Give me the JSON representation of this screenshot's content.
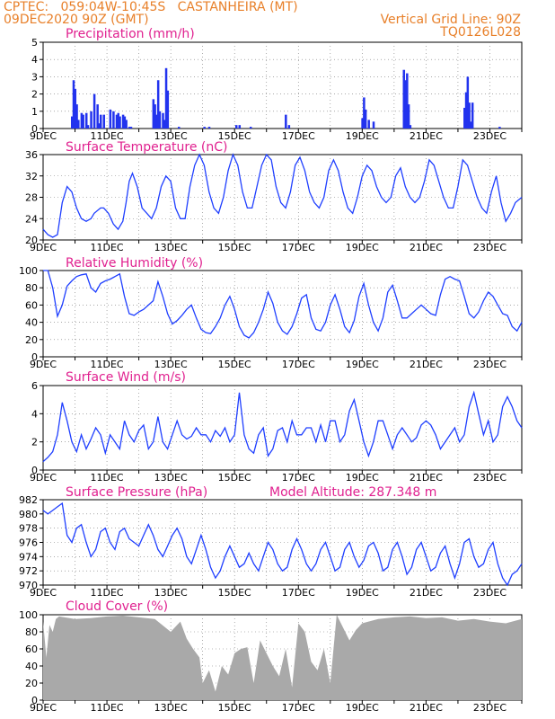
{
  "header": {
    "line1_left": "CPTEC:   059:04W-10:45S   CASTANHEIRA (MT)",
    "line2_left": "09DEC2020 90Z (GMT)",
    "line1_right": "Vertical Grid Line: 90Z",
    "line2_right": "TQ0126L028"
  },
  "x_tick_labels": [
    "9DEC",
    "11DEC",
    "13DEC",
    "15DEC",
    "17DEC",
    "19DEC",
    "21DEC",
    "23DEC"
  ],
  "colors": {
    "series": "#1f3fff",
    "bars": "#2233ee",
    "cloud": "#a9a9a9",
    "title": "#e0208f",
    "header": "#e8802a"
  },
  "chart_data": [
    {
      "type": "bar",
      "title": "Precipitation (mm/h)",
      "ylim": [
        0,
        5
      ],
      "yticks": [
        "0",
        "1",
        "2",
        "3",
        "4",
        "5"
      ],
      "x_unit": "day offset from 9DEC",
      "xlim": [
        0,
        15
      ],
      "grid": true,
      "x": [
        0.9,
        0.95,
        1.0,
        1.05,
        1.1,
        1.2,
        1.25,
        1.35,
        1.4,
        1.5,
        1.6,
        1.7,
        1.75,
        1.8,
        1.9,
        2.1,
        2.2,
        2.3,
        2.35,
        2.4,
        2.5,
        2.55,
        2.6,
        2.7,
        2.75,
        3.45,
        3.5,
        3.55,
        3.6,
        3.65,
        3.75,
        3.8,
        3.85,
        3.9,
        4.25,
        5.05,
        5.2,
        6.05,
        6.15,
        6.5,
        7.6,
        7.7,
        10.0,
        10.05,
        10.1,
        10.2,
        10.35,
        11.3,
        11.35,
        11.4,
        11.45,
        11.5,
        13.2,
        13.25,
        13.3,
        13.35,
        13.4,
        13.45,
        14.3
      ],
      "values": [
        0.7,
        2.8,
        2.3,
        1.4,
        0.5,
        0.9,
        0.8,
        0.9,
        0.2,
        1.0,
        2.0,
        1.4,
        0.3,
        0.8,
        0.8,
        1.1,
        1.0,
        0.8,
        0.9,
        0.7,
        0.8,
        0.7,
        0.5,
        0.1,
        0.1,
        1.7,
        1.4,
        0.8,
        2.8,
        1.0,
        0.9,
        0.5,
        3.5,
        2.2,
        0.1,
        0.1,
        0.1,
        0.2,
        0.2,
        0.1,
        0.8,
        0.2,
        0.6,
        1.8,
        1.1,
        0.5,
        0.4,
        3.4,
        2.8,
        3.2,
        1.4,
        0.2,
        1.2,
        2.1,
        3.0,
        1.5,
        0.4,
        1.5,
        0.1
      ]
    },
    {
      "type": "line",
      "title": "Surface Temperature (nC)",
      "ylim": [
        20,
        36
      ],
      "yticks": [
        "20",
        "24",
        "28",
        "32",
        "36"
      ],
      "xlim": [
        0,
        15
      ],
      "grid": true,
      "x": [
        0,
        0.15,
        0.3,
        0.45,
        0.6,
        0.75,
        0.9,
        1.05,
        1.2,
        1.35,
        1.5,
        1.6,
        1.8,
        1.9,
        2.05,
        2.2,
        2.35,
        2.5,
        2.6,
        2.7,
        2.8,
        2.95,
        3.1,
        3.25,
        3.4,
        3.55,
        3.7,
        3.85,
        4.0,
        4.15,
        4.3,
        4.45,
        4.6,
        4.75,
        4.9,
        5.05,
        5.2,
        5.35,
        5.5,
        5.65,
        5.8,
        5.95,
        6.1,
        6.25,
        6.4,
        6.55,
        6.7,
        6.85,
        7.0,
        7.15,
        7.3,
        7.45,
        7.6,
        7.75,
        7.9,
        8.05,
        8.2,
        8.35,
        8.5,
        8.65,
        8.8,
        8.95,
        9.1,
        9.25,
        9.4,
        9.55,
        9.7,
        9.85,
        10.0,
        10.15,
        10.3,
        10.45,
        10.6,
        10.75,
        10.9,
        11.05,
        11.2,
        11.35,
        11.5,
        11.65,
        11.8,
        11.95,
        12.1,
        12.25,
        12.4,
        12.55,
        12.7,
        12.85,
        13.0,
        13.15,
        13.3,
        13.45,
        13.6,
        13.75,
        13.9,
        14.05,
        14.2,
        14.35,
        14.5,
        14.65,
        14.8,
        15.0
      ],
      "values": [
        22,
        21,
        20.5,
        21,
        27,
        30,
        29,
        26,
        24,
        23.5,
        24,
        25,
        26,
        26,
        25,
        23,
        22,
        23.5,
        27,
        31,
        32.5,
        30,
        26,
        25,
        24,
        26,
        30,
        32,
        31,
        26,
        24,
        24,
        30,
        34,
        36,
        34,
        29,
        26,
        25,
        28,
        33,
        36,
        34,
        29,
        26,
        26,
        30,
        34,
        36,
        35,
        30,
        27,
        26,
        29,
        34,
        35.5,
        33,
        29,
        27,
        26,
        28,
        33,
        35,
        33,
        29,
        26,
        25,
        28,
        32,
        34,
        33,
        30,
        28,
        27,
        28,
        32,
        33.5,
        30,
        28,
        27,
        28,
        31,
        35,
        34,
        31,
        28,
        26,
        26,
        30,
        35,
        34,
        31,
        28,
        26,
        25,
        29,
        32,
        27,
        23.5,
        25,
        27,
        28
      ]
    },
    {
      "type": "line",
      "title": "Relative Humidity (%)",
      "ylim": [
        0,
        100
      ],
      "yticks": [
        "0",
        "20",
        "40",
        "60",
        "80",
        "100"
      ],
      "xlim": [
        0,
        15
      ],
      "grid": true,
      "x": [
        0,
        0.15,
        0.3,
        0.45,
        0.6,
        0.75,
        0.9,
        1.05,
        1.2,
        1.35,
        1.5,
        1.65,
        1.8,
        1.95,
        2.1,
        2.25,
        2.4,
        2.55,
        2.7,
        2.85,
        3.0,
        3.15,
        3.3,
        3.45,
        3.6,
        3.75,
        3.9,
        4.05,
        4.2,
        4.35,
        4.5,
        4.65,
        4.8,
        4.95,
        5.1,
        5.25,
        5.4,
        5.55,
        5.7,
        5.85,
        6.0,
        6.15,
        6.3,
        6.45,
        6.6,
        6.75,
        6.9,
        7.05,
        7.2,
        7.35,
        7.5,
        7.65,
        7.8,
        7.95,
        8.1,
        8.25,
        8.4,
        8.55,
        8.7,
        8.85,
        9.0,
        9.15,
        9.3,
        9.45,
        9.6,
        9.75,
        9.9,
        10.05,
        10.2,
        10.35,
        10.5,
        10.65,
        10.8,
        10.95,
        11.1,
        11.25,
        11.4,
        11.55,
        11.7,
        11.85,
        12.0,
        12.15,
        12.3,
        12.45,
        12.6,
        12.75,
        12.9,
        13.05,
        13.2,
        13.35,
        13.5,
        13.65,
        13.8,
        13.95,
        14.1,
        14.25,
        14.4,
        14.55,
        14.7,
        14.85,
        15.0
      ],
      "values": [
        100,
        100,
        80,
        47,
        60,
        82,
        88,
        93,
        95,
        96,
        80,
        75,
        85,
        88,
        90,
        93,
        96,
        70,
        50,
        48,
        52,
        55,
        60,
        65,
        87,
        70,
        50,
        38,
        42,
        48,
        55,
        60,
        45,
        32,
        28,
        27,
        35,
        45,
        60,
        70,
        55,
        35,
        25,
        22,
        28,
        40,
        55,
        75,
        62,
        40,
        30,
        26,
        35,
        50,
        68,
        72,
        45,
        32,
        30,
        40,
        60,
        72,
        55,
        35,
        28,
        42,
        70,
        85,
        60,
        40,
        30,
        45,
        75,
        83,
        65,
        45,
        45,
        50,
        55,
        60,
        55,
        50,
        48,
        72,
        90,
        93,
        90,
        88,
        70,
        50,
        45,
        52,
        65,
        75,
        70,
        60,
        50,
        48,
        35,
        30,
        40
      ]
    },
    {
      "type": "line",
      "title": "Surface Wind (m/s)",
      "ylim": [
        0,
        6
      ],
      "yticks": [
        "0",
        "2",
        "4",
        "6"
      ],
      "xlim": [
        0,
        15
      ],
      "grid": true,
      "x": [
        0,
        0.15,
        0.3,
        0.45,
        0.6,
        0.75,
        0.9,
        1.05,
        1.2,
        1.35,
        1.5,
        1.65,
        1.8,
        1.95,
        2.1,
        2.25,
        2.4,
        2.55,
        2.7,
        2.85,
        3.0,
        3.15,
        3.3,
        3.45,
        3.6,
        3.75,
        3.9,
        4.05,
        4.2,
        4.35,
        4.5,
        4.65,
        4.8,
        4.95,
        5.1,
        5.25,
        5.4,
        5.55,
        5.7,
        5.85,
        6.0,
        6.15,
        6.3,
        6.45,
        6.6,
        6.75,
        6.9,
        7.05,
        7.2,
        7.35,
        7.5,
        7.65,
        7.8,
        7.95,
        8.1,
        8.25,
        8.4,
        8.55,
        8.7,
        8.85,
        9.0,
        9.15,
        9.3,
        9.45,
        9.6,
        9.75,
        9.9,
        10.05,
        10.2,
        10.35,
        10.5,
        10.65,
        10.8,
        10.95,
        11.1,
        11.25,
        11.4,
        11.55,
        11.7,
        11.85,
        12.0,
        12.15,
        12.3,
        12.45,
        12.6,
        12.75,
        12.9,
        13.05,
        13.2,
        13.35,
        13.5,
        13.65,
        13.8,
        13.95,
        14.1,
        14.25,
        14.4,
        14.55,
        14.7,
        14.85,
        15.0
      ],
      "values": [
        0.6,
        0.9,
        1.3,
        2.5,
        4.8,
        3.5,
        2.0,
        1.3,
        2.5,
        1.5,
        2.2,
        3.0,
        2.5,
        1.2,
        2.5,
        2.0,
        1.5,
        3.5,
        2.5,
        2.0,
        2.8,
        3.2,
        1.5,
        2.0,
        3.8,
        2.0,
        1.5,
        2.5,
        3.5,
        2.5,
        2.2,
        2.4,
        3.0,
        2.5,
        2.5,
        2.0,
        2.8,
        2.4,
        3.0,
        2.0,
        2.5,
        5.5,
        2.5,
        1.5,
        1.2,
        2.5,
        3.0,
        1.0,
        1.5,
        2.8,
        3.0,
        2.0,
        3.5,
        2.5,
        2.5,
        3.0,
        3.0,
        2.0,
        3.2,
        2.0,
        3.5,
        3.5,
        2.0,
        2.5,
        4.2,
        5.0,
        3.5,
        2.0,
        1.0,
        2.0,
        3.5,
        3.5,
        2.5,
        1.5,
        2.5,
        3.0,
        2.5,
        2.0,
        2.3,
        3.2,
        3.5,
        3.2,
        2.5,
        1.5,
        2.0,
        2.5,
        3.0,
        2.0,
        2.5,
        4.5,
        5.5,
        4.0,
        2.5,
        3.5,
        2.0,
        2.5,
        4.5,
        5.2,
        4.5,
        3.5,
        3.0
      ]
    },
    {
      "type": "line",
      "title": "Surface Pressure (hPa)",
      "annotation": "Model Altitude: 287.348 m",
      "ylim": [
        970,
        982
      ],
      "yticks": [
        "970",
        "972",
        "974",
        "976",
        "978",
        "980",
        "982"
      ],
      "xlim": [
        0,
        15
      ],
      "grid": true,
      "x": [
        0,
        0.15,
        0.3,
        0.45,
        0.6,
        0.75,
        0.9,
        1.05,
        1.2,
        1.35,
        1.5,
        1.65,
        1.8,
        1.95,
        2.1,
        2.25,
        2.4,
        2.55,
        2.7,
        2.85,
        3.0,
        3.15,
        3.3,
        3.45,
        3.6,
        3.75,
        3.9,
        4.05,
        4.2,
        4.35,
        4.5,
        4.65,
        4.8,
        4.95,
        5.1,
        5.25,
        5.4,
        5.55,
        5.7,
        5.85,
        6.0,
        6.15,
        6.3,
        6.45,
        6.6,
        6.75,
        6.9,
        7.05,
        7.2,
        7.35,
        7.5,
        7.65,
        7.8,
        7.95,
        8.1,
        8.25,
        8.4,
        8.55,
        8.7,
        8.85,
        9.0,
        9.15,
        9.3,
        9.45,
        9.6,
        9.75,
        9.9,
        10.05,
        10.2,
        10.35,
        10.5,
        10.65,
        10.8,
        10.95,
        11.1,
        11.25,
        11.4,
        11.55,
        11.7,
        11.85,
        12.0,
        12.15,
        12.3,
        12.45,
        12.6,
        12.75,
        12.9,
        13.05,
        13.2,
        13.35,
        13.5,
        13.65,
        13.8,
        13.95,
        14.1,
        14.25,
        14.4,
        14.55,
        14.7,
        14.85,
        15.0
      ],
      "values": [
        980.5,
        980,
        980.5,
        981,
        981.5,
        977,
        976,
        978,
        978.5,
        976,
        974,
        975,
        977.5,
        978,
        976,
        975,
        977.5,
        978,
        976.5,
        976,
        975.5,
        977,
        978.5,
        977,
        975,
        974,
        975.5,
        977,
        978,
        976.5,
        974,
        973,
        975,
        977,
        975,
        972.5,
        971,
        972,
        974,
        975.5,
        974,
        972.5,
        973,
        974.5,
        973,
        972,
        974,
        976,
        975,
        973,
        972,
        972.5,
        975,
        976.5,
        975,
        973,
        972,
        973,
        975,
        976,
        974,
        972,
        972.5,
        975,
        976,
        974,
        972.5,
        973.5,
        975.5,
        976,
        974.5,
        972,
        972.5,
        975,
        976,
        974,
        971.5,
        972.5,
        975,
        976,
        974,
        972,
        972.5,
        974.5,
        975.5,
        973,
        971,
        973,
        976,
        976.5,
        974,
        972.5,
        973,
        975,
        976,
        973,
        971,
        970,
        971.5,
        972,
        973
      ]
    },
    {
      "type": "area",
      "title": "Cloud Cover (%)",
      "ylim": [
        0,
        100
      ],
      "yticks": [
        "0",
        "20",
        "40",
        "60",
        "80",
        "100"
      ],
      "xlim": [
        0,
        15
      ],
      "grid": true,
      "x": [
        0,
        0.1,
        0.2,
        0.3,
        0.4,
        0.5,
        1.0,
        1.5,
        2.0,
        2.5,
        3.0,
        3.5,
        4.0,
        4.3,
        4.5,
        4.7,
        4.9,
        5.0,
        5.2,
        5.4,
        5.6,
        5.8,
        6.0,
        6.2,
        6.4,
        6.6,
        6.8,
        7.0,
        7.2,
        7.4,
        7.6,
        7.8,
        8.0,
        8.2,
        8.4,
        8.6,
        8.8,
        9.0,
        9.2,
        9.4,
        9.6,
        9.8,
        10.0,
        10.5,
        11.0,
        11.5,
        12.0,
        12.5,
        13.0,
        13.5,
        14.0,
        14.5,
        15.0
      ],
      "values": [
        92,
        50,
        88,
        80,
        95,
        98,
        95,
        96,
        98,
        99,
        97,
        95,
        80,
        92,
        72,
        60,
        50,
        20,
        35,
        10,
        40,
        30,
        55,
        60,
        62,
        20,
        70,
        55,
        40,
        28,
        60,
        15,
        90,
        80,
        45,
        35,
        60,
        20,
        100,
        85,
        70,
        82,
        90,
        95,
        97,
        98,
        96,
        97,
        93,
        95,
        92,
        90,
        95
      ]
    }
  ]
}
